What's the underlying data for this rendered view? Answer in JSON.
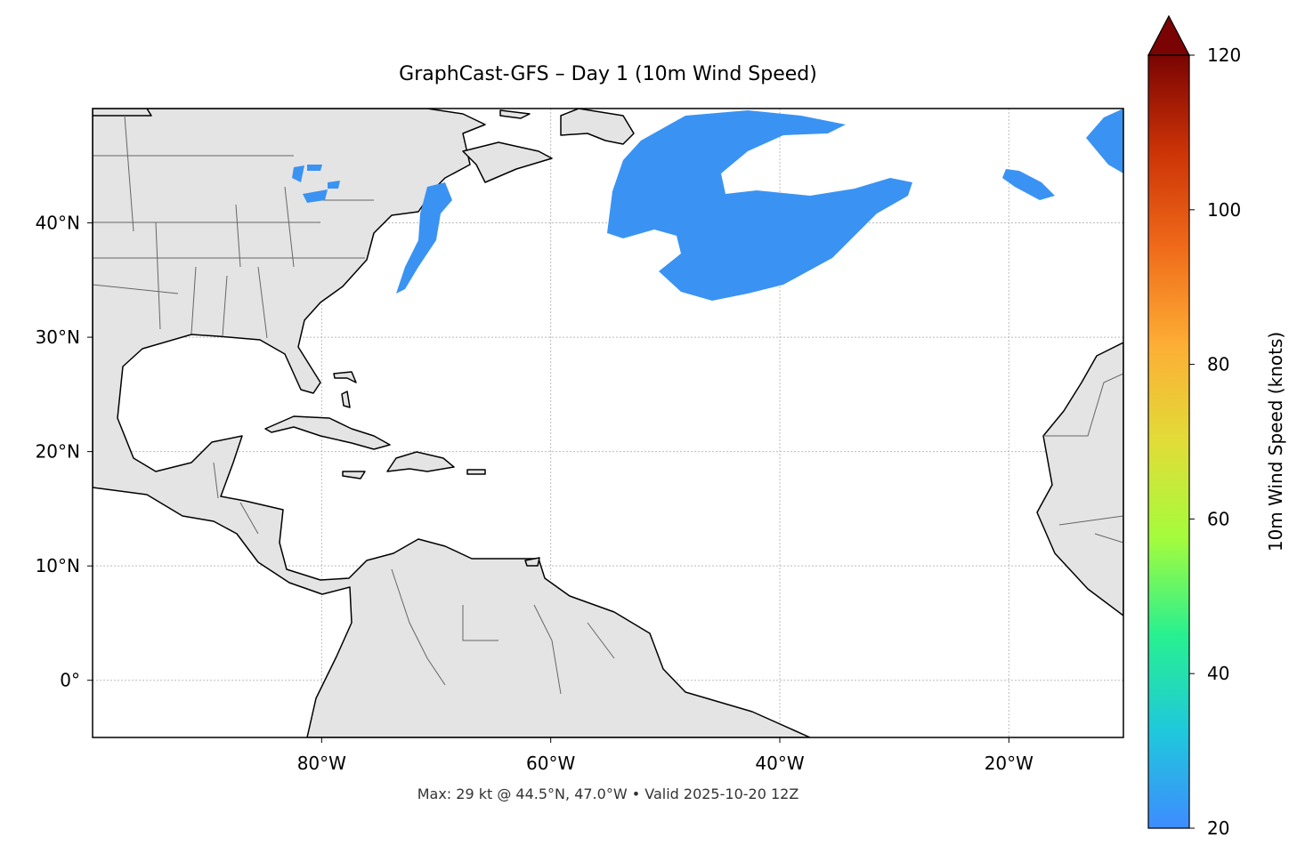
{
  "chart_data": {
    "type": "map",
    "title": "GraphCast-GFS – Day 1 (10m Wind Speed)",
    "footer": "Max: 29 kt @ 44.5°N, 47.0°W • Valid 2025-10-20 12Z",
    "xlim": [
      -100,
      -10
    ],
    "ylim": [
      -5,
      50
    ],
    "xticks": [
      {
        "value": -80,
        "label": "80°W"
      },
      {
        "value": -60,
        "label": "60°W"
      },
      {
        "value": -40,
        "label": "40°W"
      },
      {
        "value": -20,
        "label": "20°W"
      }
    ],
    "yticks": [
      {
        "value": 0,
        "label": "0°"
      },
      {
        "value": 10,
        "label": "10°N"
      },
      {
        "value": 20,
        "label": "20°N"
      },
      {
        "value": 30,
        "label": "30°N"
      },
      {
        "value": 40,
        "label": "40°N"
      }
    ],
    "grid": true,
    "colorbar": {
      "label": "10m Wind Speed (knots)",
      "lim": [
        20,
        120
      ],
      "ticks": [
        20,
        40,
        60,
        80,
        100,
        120
      ],
      "colors": [
        "#3e8cff",
        "#1fc8dc",
        "#28f090",
        "#a4fc3c",
        "#e2dc38",
        "#fdae35",
        "#f06b1a",
        "#cc3306",
        "#7a0403"
      ]
    }
  }
}
